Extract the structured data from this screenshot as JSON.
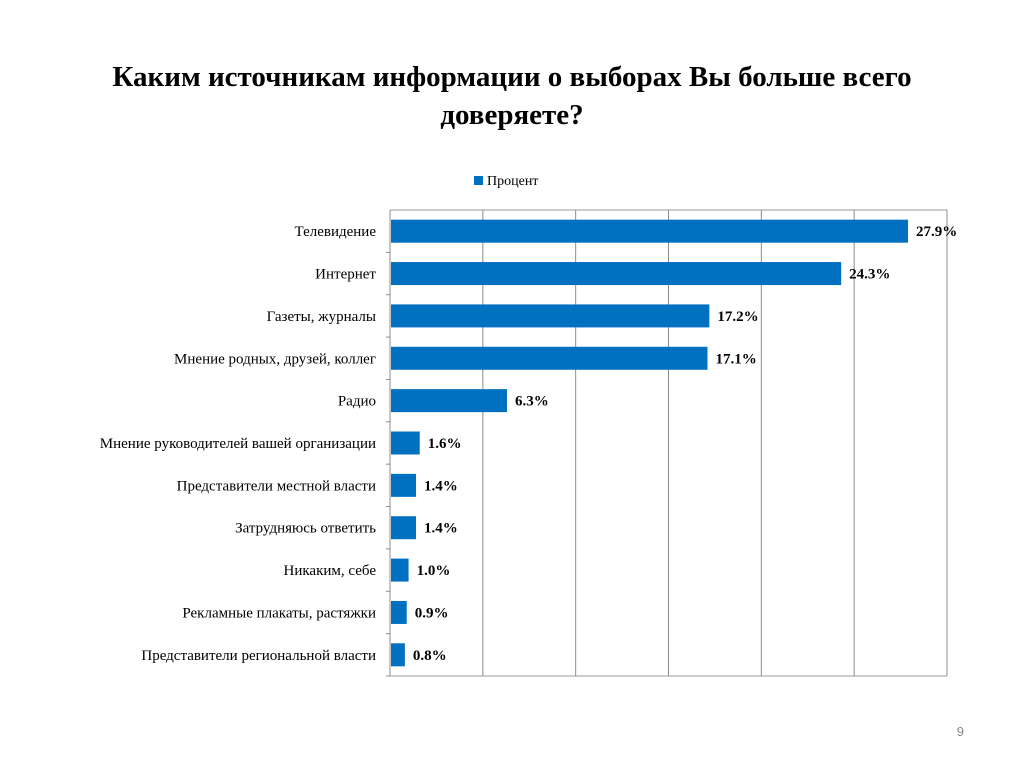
{
  "slide": {
    "title": "Каким источникам информации о выборах Вы больше всего доверяете?",
    "page_number": "9"
  },
  "chart_data": {
    "type": "bar",
    "orientation": "horizontal",
    "title": "",
    "xlabel": "",
    "ylabel": "",
    "xlim": [
      0,
      30
    ],
    "grid": true,
    "legend_position": "top",
    "categories": [
      "Телевидение",
      "Интернет",
      "Газеты, журналы",
      "Мнение родных, друзей, коллег",
      "Радио",
      "Мнение руководителей вашей организации",
      "Представители местной власти",
      "Затрудняюсь ответить",
      "Никаким, себе",
      "Рекламные плакаты, растяжки",
      "Представители региональной власти"
    ],
    "series": [
      {
        "name": "Процент",
        "color": "#0070C0",
        "values": [
          27.9,
          24.3,
          17.2,
          17.1,
          6.3,
          1.6,
          1.4,
          1.4,
          1.0,
          0.9,
          0.8
        ],
        "labels": [
          "27.9%",
          "24.3%",
          "17.2%",
          "17.1%",
          "6.3%",
          "1.6%",
          "1.4%",
          "1.4%",
          "1.0%",
          "0.9%",
          "0.8%"
        ]
      }
    ]
  }
}
